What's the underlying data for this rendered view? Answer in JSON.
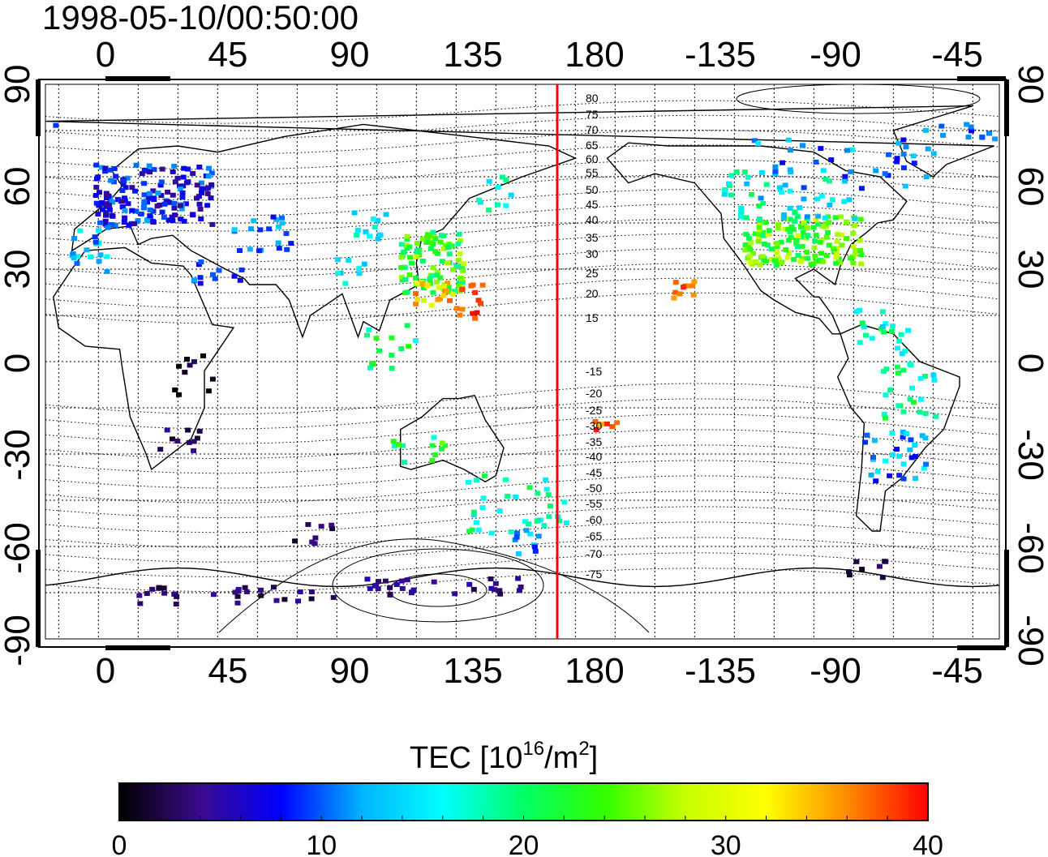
{
  "title": "1998-05-10/00:50:00",
  "lon_ticks": [
    "0",
    "45",
    "90",
    "135",
    "180",
    "-135",
    "-90",
    "-45"
  ],
  "lat_ticks": [
    "90",
    "60",
    "30",
    "0",
    "-30",
    "-60",
    "-90"
  ],
  "mag_lat_labels": [
    "80",
    "75",
    "70",
    "65",
    "60",
    "55",
    "50",
    "45",
    "40",
    "35",
    "30",
    "25",
    "20",
    "15",
    "-15",
    "-20",
    "-25",
    "-30",
    "-35",
    "-40",
    "-45",
    "-50",
    "-55",
    "-60",
    "-65",
    "-70",
    "-75"
  ],
  "colorbar": {
    "label_main": "TEC  [10",
    "label_sup1": "16",
    "label_mid": "/m",
    "label_sup2": "2",
    "label_end": "]",
    "ticks": [
      "0",
      "10",
      "20",
      "30",
      "40"
    ],
    "min": 0,
    "max": 40
  },
  "colors": {
    "meridian_line": "#ff0000",
    "colormap": [
      "#000000",
      "#3a0a8c",
      "#0000ff",
      "#00b4ff",
      "#00ffff",
      "#00ff64",
      "#32ff00",
      "#c8ff00",
      "#ffff00",
      "#ff8c00",
      "#ff0000"
    ]
  }
}
